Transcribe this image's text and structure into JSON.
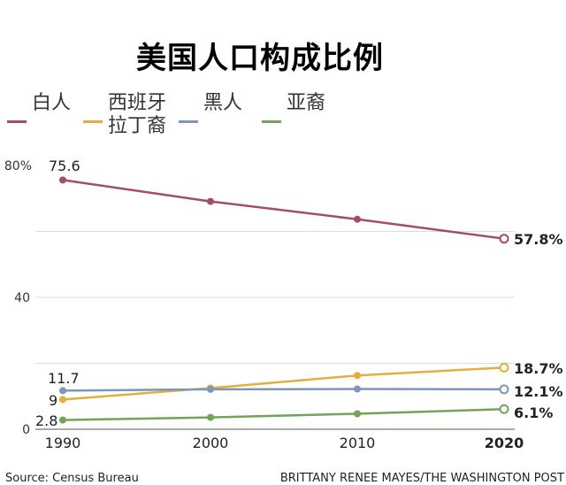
{
  "chart_data": {
    "type": "line",
    "title": "美国人口构成比例",
    "x": [
      1990,
      2000,
      2010,
      2020
    ],
    "x_tick_labels": [
      "1990",
      "2000",
      "2010",
      "2020"
    ],
    "y_ticks": [
      0,
      40,
      80
    ],
    "y_tick_labels": [
      "0",
      "40",
      "80%"
    ],
    "ylim": [
      0,
      80
    ],
    "grid": true,
    "legend_position": "top",
    "series": [
      {
        "name": "白人",
        "color": "#a34d6b",
        "values": [
          75.6,
          69.1,
          63.7,
          57.8
        ],
        "start_label": "75.6",
        "end_label": "57.8%"
      },
      {
        "name": "西班牙\n拉丁裔",
        "color": "#e5ad3f",
        "values": [
          9.0,
          12.5,
          16.3,
          18.7
        ],
        "start_label": "9",
        "end_label": "18.7%"
      },
      {
        "name": "黑人",
        "color": "#7c97b8",
        "values": [
          11.7,
          12.1,
          12.2,
          12.1
        ],
        "start_label": "11.7",
        "end_label": "12.1%"
      },
      {
        "name": "亚裔",
        "color": "#72a35a",
        "values": [
          2.8,
          3.6,
          4.7,
          6.1
        ],
        "start_label": "2.8",
        "end_label": "6.1%"
      }
    ]
  },
  "footer": {
    "source": "Source: Census Bureau",
    "credit": "BRITTANY RENEE MAYES/THE WASHINGTON POST"
  }
}
